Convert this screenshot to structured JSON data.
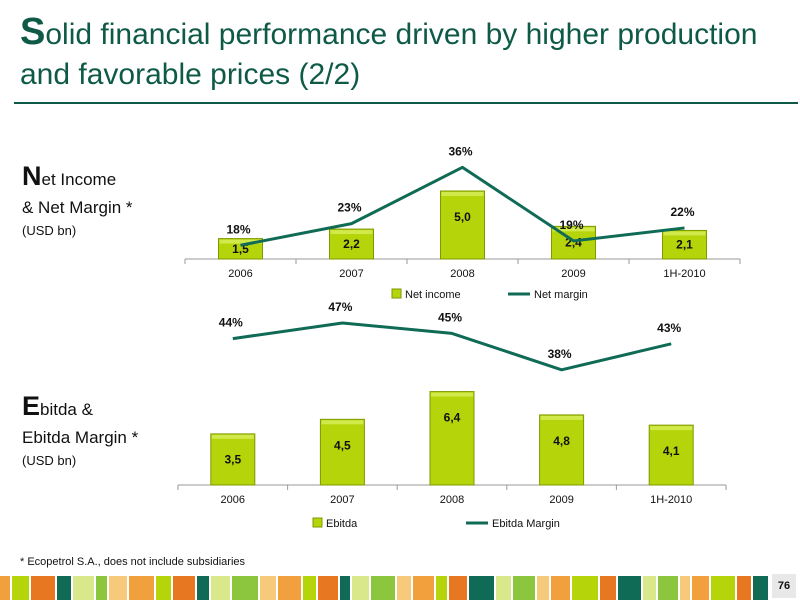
{
  "title": {
    "initial": "S",
    "rest": "olid financial performance driven by higher production and favorable prices (2/2)"
  },
  "top_label": {
    "initial": "N",
    "line1": "et Income",
    "line2": "& Net Margin *",
    "unit": "(USD bn)"
  },
  "bottom_label": {
    "initial": "E",
    "line1": "bitda &",
    "line2": "Ebitda Margin *",
    "unit": "(USD bn)"
  },
  "footnote": "* Ecopetrol S.A., does not include subsidiaries",
  "page_number": "76",
  "colors": {
    "bar": "#b5d40a",
    "bar_dark": "#7e9a00",
    "line": "#0f6b55",
    "title": "#0f5a46"
  },
  "chart_data": [
    {
      "type": "bar",
      "categories": [
        "2006",
        "2007",
        "2008",
        "2009",
        "1H-2010"
      ],
      "series": [
        {
          "name": "Net income",
          "values": [
            1.5,
            2.2,
            5.0,
            2.4,
            2.1
          ],
          "labels": [
            "1,5",
            "2,2",
            "5,0",
            "2,4",
            "2,1"
          ]
        },
        {
          "name": "Net margin",
          "type": "line",
          "values": [
            18,
            23,
            36,
            19,
            22
          ],
          "labels": [
            "18%",
            "23%",
            "36%",
            "19%",
            "22%"
          ]
        }
      ],
      "legend": "bottom"
    },
    {
      "type": "bar",
      "categories": [
        "2006",
        "2007",
        "2008",
        "2009",
        "1H-2010"
      ],
      "series": [
        {
          "name": "Ebitda",
          "values": [
            3.5,
            4.5,
            6.4,
            4.8,
            4.1
          ],
          "labels": [
            "3,5",
            "4,5",
            "6,4",
            "4,8",
            "4,1"
          ]
        },
        {
          "name": "Ebitda Margin",
          "type": "line",
          "values": [
            44,
            47,
            45,
            38,
            43
          ],
          "labels": [
            "44%",
            "47%",
            "45%",
            "38%",
            "43%"
          ]
        }
      ],
      "legend": "bottom"
    }
  ]
}
